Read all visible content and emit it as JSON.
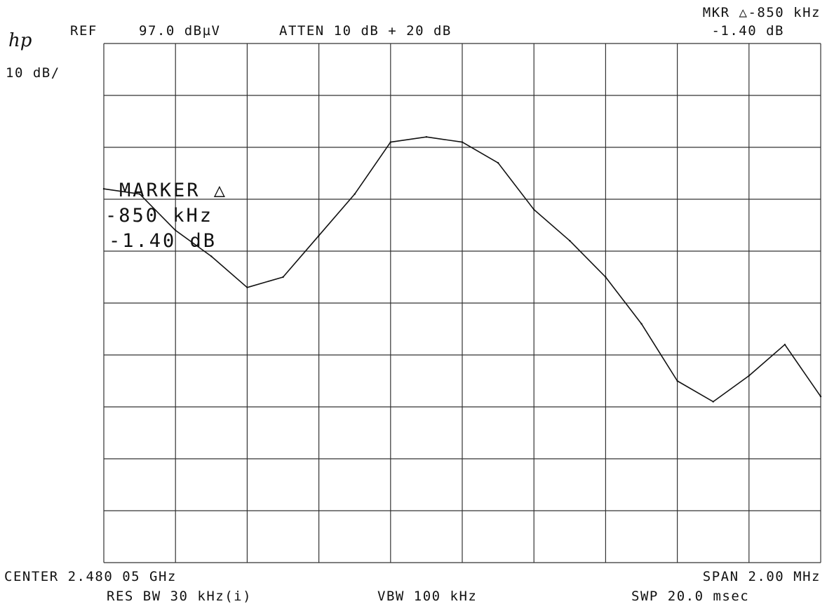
{
  "app": {
    "logo": "hp"
  },
  "header": {
    "ref_label": "REF",
    "ref_value": "97.0 dBµV",
    "atten": "ATTEN 10 dB + 20 dB",
    "marker_line1": "MKR △-850 kHz",
    "marker_line2": "-1.40 dB"
  },
  "scale_label": "10 dB/",
  "marker_box": {
    "line1": "MARKER △",
    "line2": "-850 kHz",
    "line3": "-1.40 dB"
  },
  "footer": {
    "center": "CENTER 2.480 05 GHz",
    "span": "SPAN 2.00 MHz",
    "res_bw": "RES BW 30 kHz(i)",
    "vbw": "VBW 100 kHz",
    "sweep": "SWP 20.0 msec"
  },
  "colors": {
    "trace": "#111111",
    "grid": "#333333",
    "background": "#ffffff"
  },
  "chart_data": {
    "type": "line",
    "title": "",
    "xlabel": "",
    "ylabel": "",
    "x_unit": "GHz",
    "y_unit": "dBµV",
    "xlim": [
      2.47905,
      2.48105
    ],
    "ylim": [
      -3.0,
      97.0
    ],
    "grid": true,
    "x_divisions": 10,
    "y_divisions": 10,
    "series": [
      {
        "x": [
          2.47905,
          2.47915,
          2.47925,
          2.47935,
          2.47945,
          2.47955,
          2.47965,
          2.47975,
          2.47985,
          2.47995,
          2.48005,
          2.48015,
          2.48025,
          2.48035,
          2.48045,
          2.48055,
          2.48065,
          2.48075,
          2.48085,
          2.48095,
          2.48105
        ],
        "values": [
          69,
          68,
          61,
          56,
          50,
          52,
          60,
          68,
          78,
          79,
          78,
          74,
          65,
          59,
          52,
          43,
          32,
          28,
          33,
          39,
          29
        ]
      }
    ],
    "marker": {
      "type": "delta",
      "delta_freq": "-850 kHz",
      "delta_amp_db": -1.4
    }
  }
}
